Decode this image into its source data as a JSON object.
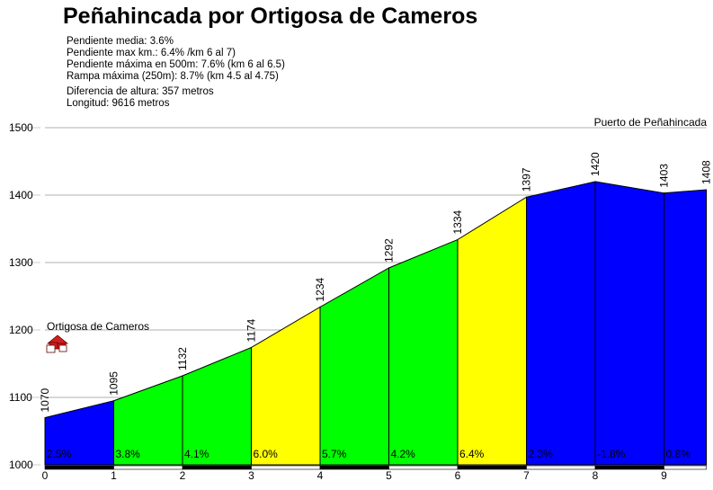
{
  "title": "Peñahincada por Ortigosa de Cameros",
  "stats": [
    "Pendiente media: 3.6%",
    "Pendiente max km.: 6.4% /km 6 al 7)",
    "Pendiente máxima en 500m: 7.6% (km 6 al 6.5)",
    "Rampa máxima (250m): 8.7% (km 4.5 al 4.75)",
    "Diferencia de altura: 357 metros",
    "Longitud: 9616 metros"
  ],
  "chart_data": {
    "type": "area",
    "x": [
      0,
      1,
      2,
      3,
      4,
      5,
      6,
      7,
      8,
      9,
      9.616
    ],
    "altitudes": [
      1070,
      1095,
      1132,
      1174,
      1234,
      1292,
      1334,
      1397,
      1420,
      1403,
      1408
    ],
    "altitude_labels": [
      "1070",
      "1095",
      "1132",
      "1174",
      "1234",
      "1292",
      "1334",
      "1397",
      "1420",
      "1403",
      "1408"
    ],
    "segments": [
      {
        "gradient": "2.5%",
        "color": "#0000ff"
      },
      {
        "gradient": "3.8%",
        "color": "#00ff00"
      },
      {
        "gradient": "4.1%",
        "color": "#00ff00"
      },
      {
        "gradient": "6.0%",
        "color": "#ffff00"
      },
      {
        "gradient": "5.7%",
        "color": "#00ff00"
      },
      {
        "gradient": "4.2%",
        "color": "#00ff00"
      },
      {
        "gradient": "6.4%",
        "color": "#ffff00"
      },
      {
        "gradient": "2.3%",
        "color": "#0000ff"
      },
      {
        "gradient": "-1.8%",
        "color": "#0000ff"
      },
      {
        "gradient": "0.8%",
        "color": "#0000ff"
      }
    ],
    "y_ticks": [
      "1000",
      "1100",
      "1200",
      "1300",
      "1400",
      "1500"
    ],
    "x_ticks": [
      "0",
      "1",
      "2",
      "3",
      "4",
      "5",
      "6",
      "7",
      "8",
      "9"
    ],
    "ylim": [
      1000,
      1500
    ],
    "start_label": "Ortigosa de Cameros",
    "end_label": "Puerto de Peñahincada",
    "grid": true
  }
}
